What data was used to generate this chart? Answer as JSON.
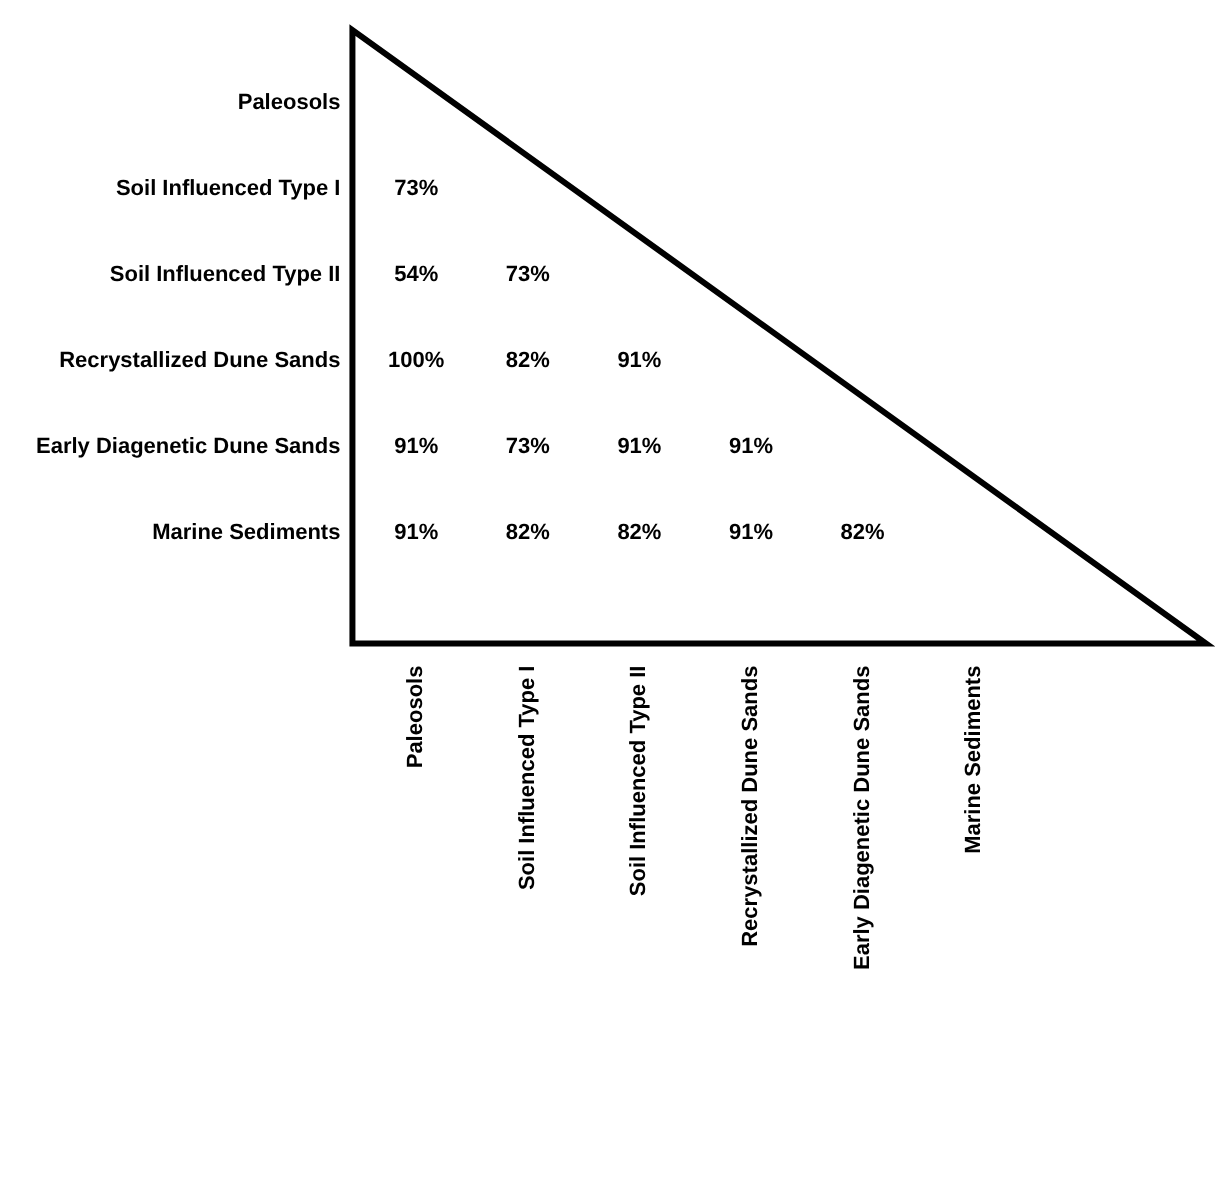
{
  "chart_data": {
    "type": "heatmap",
    "categories": [
      "Paleosols",
      "Soil Influenced Type I",
      "Soil Influenced Type II",
      "Recrystallized Dune Sands",
      "Early Diagenetic Dune Sands",
      "Marine Sediments"
    ],
    "y_categories": [
      "Paleosols",
      "Soil Influenced Type I",
      "Soil Influenced Type II",
      "Recrystallized Dune Sands",
      "Early Diagenetic Dune Sands",
      "Marine Sediments"
    ],
    "cells": [
      [
        null,
        null,
        null,
        null,
        null,
        null
      ],
      [
        73,
        null,
        null,
        null,
        null,
        null
      ],
      [
        54,
        73,
        null,
        null,
        null,
        null
      ],
      [
        100,
        82,
        91,
        null,
        null,
        null
      ],
      [
        91,
        73,
        91,
        91,
        null,
        null
      ],
      [
        91,
        82,
        82,
        91,
        82,
        null
      ]
    ],
    "cell_labels": [
      [
        null,
        null,
        null,
        null,
        null,
        null
      ],
      [
        "73%",
        null,
        null,
        null,
        null,
        null
      ],
      [
        "54%",
        "73%",
        null,
        null,
        null,
        null
      ],
      [
        "100%",
        "82%",
        "91%",
        null,
        null,
        null
      ],
      [
        "91%",
        "73%",
        "91%",
        "91%",
        null,
        null
      ],
      [
        "91%",
        "82%",
        "82%",
        "91%",
        "82%",
        null
      ]
    ],
    "grid": false,
    "legend": false
  }
}
